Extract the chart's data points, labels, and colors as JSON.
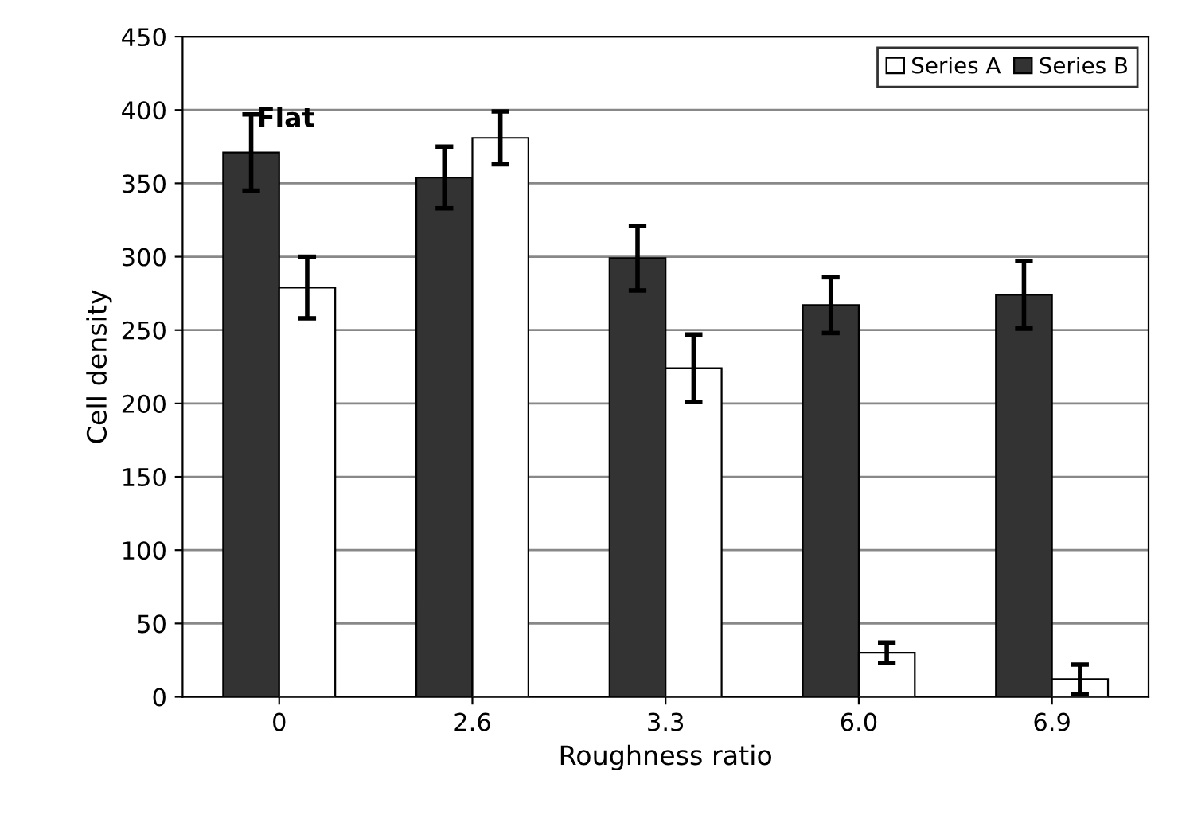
{
  "chart_data": {
    "type": "bar",
    "xlabel": "Roughness ratio",
    "ylabel": "Cell density",
    "categories": [
      "0",
      "2.6",
      "3.3",
      "6.0",
      "6.9"
    ],
    "series": [
      {
        "name": "Series B",
        "color": "#333333",
        "values": [
          371,
          354,
          299,
          267,
          274
        ],
        "errors": [
          26,
          21,
          22,
          19,
          23
        ]
      },
      {
        "name": "Series A",
        "color": "#ffffff",
        "values": [
          279,
          381,
          224,
          30,
          12
        ],
        "errors": [
          21,
          18,
          23,
          7,
          10
        ]
      }
    ],
    "annotations": [
      "Flat"
    ],
    "ylim": [
      0,
      450
    ],
    "yticks": [
      0,
      50,
      100,
      150,
      200,
      250,
      300,
      350,
      400,
      450
    ],
    "grid": "y",
    "legend": "top right"
  }
}
